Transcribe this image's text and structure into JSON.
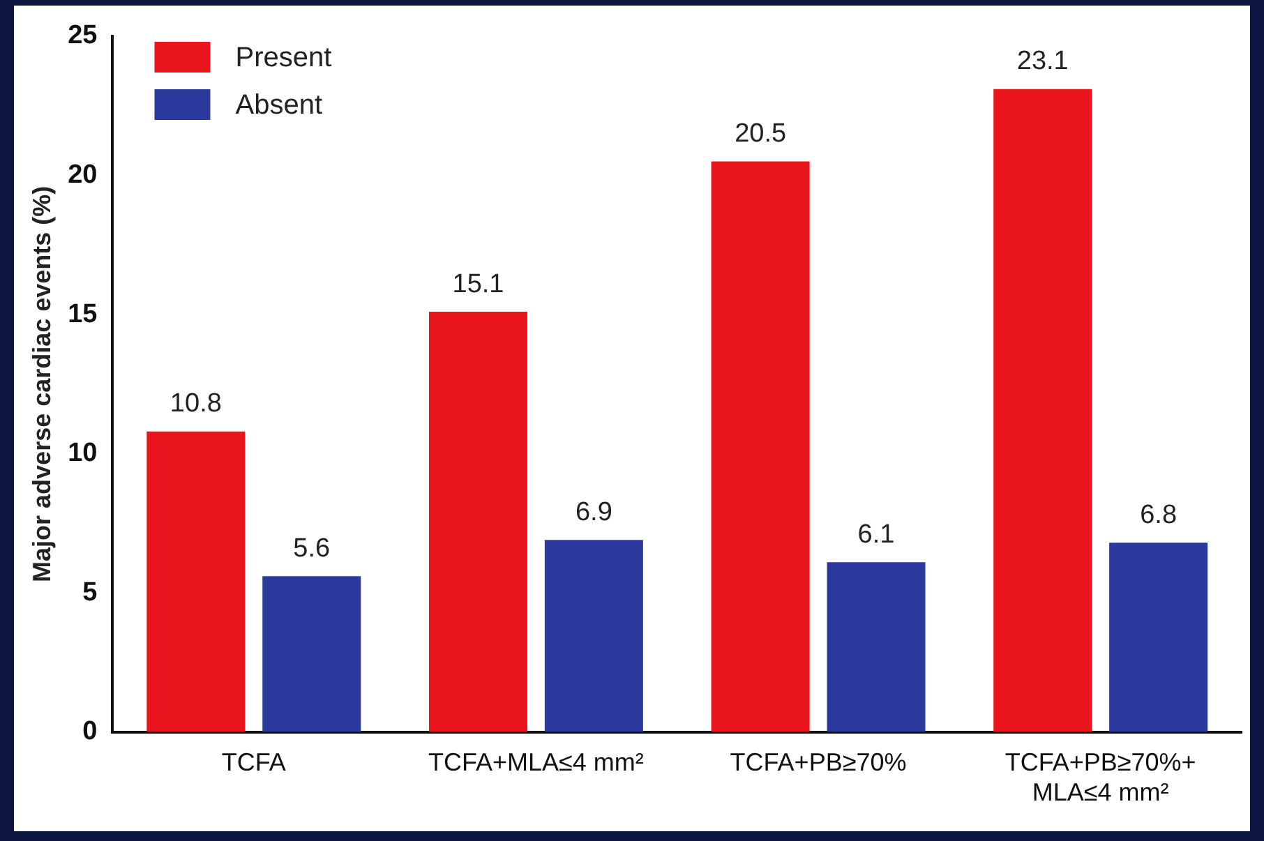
{
  "chart_data": {
    "type": "bar",
    "ylabel": "Major adverse cardiac events (%)",
    "categories": [
      "TCFA",
      "TCFA+MLA≤4 mm²",
      "TCFA+PB≥70%",
      "TCFA+PB≥70%+\nMLA≤4 mm²"
    ],
    "series": [
      {
        "name": "Present",
        "color": "#e8161c",
        "values": [
          10.8,
          15.1,
          20.5,
          23.1
        ]
      },
      {
        "name": "Absent",
        "color": "#2b3a9c",
        "values": [
          5.6,
          6.9,
          6.1,
          6.8
        ]
      }
    ],
    "ylim": [
      0,
      25
    ],
    "yticks": [
      0,
      5,
      10,
      15,
      20,
      25
    ],
    "grid": false,
    "legend": "top left",
    "data_labels": true
  }
}
